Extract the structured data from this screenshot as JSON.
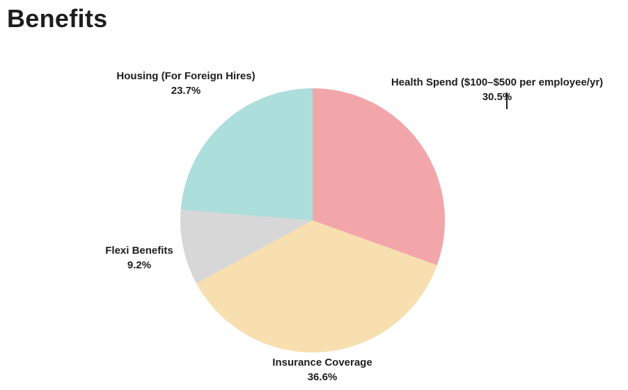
{
  "page": {
    "background": "#ffffff"
  },
  "chart_data": {
    "type": "pie",
    "title": "Benefits",
    "direction": "clockwise",
    "start_angle_deg": 0,
    "labels_position": "outside",
    "legend_position": "none",
    "text_color": "#1d1d1d",
    "slices": [
      {
        "label": "Health Spend ($100–$500 per employee/yr)",
        "pct_label": "30.5%",
        "value": 30.5,
        "color": "#F3A6AA"
      },
      {
        "label": "Insurance Coverage",
        "pct_label": "36.6%",
        "value": 36.6,
        "color": "#F7DFB0"
      },
      {
        "label": "Flexi Benefits",
        "pct_label": "9.2%",
        "value": 9.2,
        "color": "#D7D7D7"
      },
      {
        "label": "Housing (For Foreign Hires)",
        "pct_label": "23.7%",
        "value": 23.7,
        "color": "#ACDEDB"
      }
    ],
    "editing_caret": {
      "in_slice_pct_label": "30.5%",
      "caret_between": [
        "30.5",
        "%"
      ]
    }
  }
}
